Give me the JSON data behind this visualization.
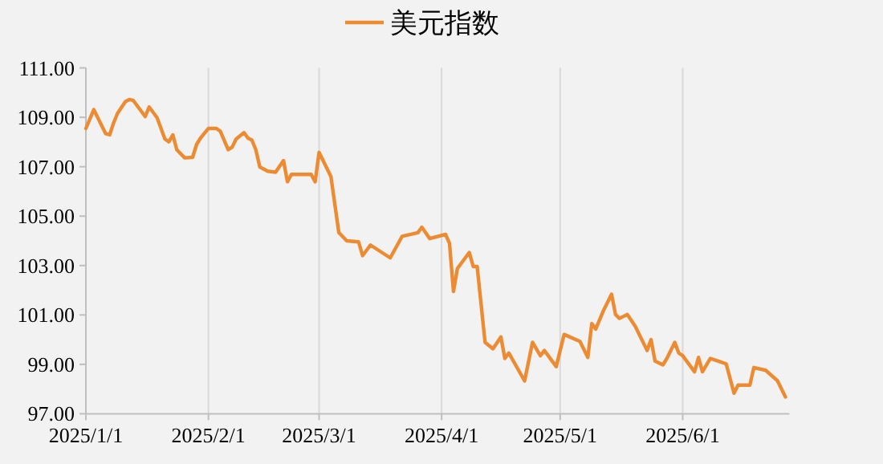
{
  "chart_data": {
    "type": "line",
    "x": [
      "2025-01-01",
      "2025-01-03",
      "2025-01-06",
      "2025-01-07",
      "2025-01-08",
      "2025-01-09",
      "2025-01-11",
      "2025-01-12",
      "2025-01-13",
      "2025-01-15",
      "2025-01-16",
      "2025-01-17",
      "2025-01-19",
      "2025-01-21",
      "2025-01-22",
      "2025-01-23",
      "2025-01-24",
      "2025-01-26",
      "2025-01-28",
      "2025-01-29",
      "2025-01-30",
      "2025-02-01",
      "2025-02-03",
      "2025-02-04",
      "2025-02-06",
      "2025-02-07",
      "2025-02-08",
      "2025-02-10",
      "2025-02-11",
      "2025-02-12",
      "2025-02-13",
      "2025-02-14",
      "2025-02-16",
      "2025-02-18",
      "2025-02-20",
      "2025-02-21",
      "2025-02-22",
      "2025-02-24",
      "2025-02-27",
      "2025-02-28",
      "2025-03-01",
      "2025-03-04",
      "2025-03-06",
      "2025-03-08",
      "2025-03-11",
      "2025-03-12",
      "2025-03-14",
      "2025-03-19",
      "2025-03-22",
      "2025-03-26",
      "2025-03-27",
      "2025-03-29",
      "2025-04-02",
      "2025-04-03",
      "2025-04-04",
      "2025-04-05",
      "2025-04-08",
      "2025-04-09",
      "2025-04-10",
      "2025-04-12",
      "2025-04-14",
      "2025-04-16",
      "2025-04-17",
      "2025-04-18",
      "2025-04-22",
      "2025-04-24",
      "2025-04-26",
      "2025-04-27",
      "2025-04-30",
      "2025-05-02",
      "2025-05-06",
      "2025-05-08",
      "2025-05-09",
      "2025-05-10",
      "2025-05-12",
      "2025-05-14",
      "2025-05-15",
      "2025-05-16",
      "2025-05-18",
      "2025-05-20",
      "2025-05-23",
      "2025-05-24",
      "2025-05-25",
      "2025-05-27",
      "2025-05-28",
      "2025-05-30",
      "2025-05-31",
      "2025-06-01",
      "2025-06-04",
      "2025-06-05",
      "2025-06-06",
      "2025-06-08",
      "2025-06-10",
      "2025-06-12",
      "2025-06-14",
      "2025-06-15",
      "2025-06-18",
      "2025-06-19",
      "2025-06-22",
      "2025-06-25",
      "2025-06-27"
    ],
    "series": [
      {
        "name": "美元指数",
        "color": "#ed8b32",
        "values": [
          108.55,
          109.31,
          108.34,
          108.29,
          108.77,
          109.16,
          109.64,
          109.72,
          109.68,
          109.25,
          109.03,
          109.42,
          108.99,
          108.12,
          108.01,
          108.29,
          107.69,
          107.36,
          107.38,
          107.9,
          108.16,
          108.55,
          108.55,
          108.44,
          107.69,
          107.79,
          108.12,
          108.38,
          108.16,
          108.08,
          107.69,
          106.99,
          106.82,
          106.78,
          107.25,
          106.39,
          106.69,
          106.69,
          106.69,
          106.39,
          107.58,
          106.6,
          104.33,
          104.0,
          103.96,
          103.4,
          103.83,
          103.31,
          104.18,
          104.33,
          104.55,
          104.09,
          104.26,
          103.9,
          101.95,
          102.88,
          103.53,
          102.96,
          102.96,
          99.89,
          99.63,
          100.11,
          99.24,
          99.46,
          98.33,
          99.89,
          99.35,
          99.56,
          98.91,
          100.21,
          99.93,
          99.28,
          100.65,
          100.43,
          101.19,
          101.84,
          101.02,
          100.86,
          101.02,
          100.54,
          99.56,
          100.0,
          99.13,
          98.98,
          99.24,
          99.89,
          99.46,
          99.35,
          98.7,
          99.28,
          98.7,
          99.24,
          99.13,
          99.02,
          97.83,
          98.16,
          98.16,
          98.87,
          98.76,
          98.33,
          97.68
        ]
      }
    ],
    "xlim": [
      "2025-01-01",
      "2025-06-28"
    ],
    "ylim": [
      97,
      111
    ],
    "xticks": [
      {
        "value": "2025-01-01",
        "label": "2025/1/1"
      },
      {
        "value": "2025-02-01",
        "label": "2025/2/1"
      },
      {
        "value": "2025-03-01",
        "label": "2025/3/1"
      },
      {
        "value": "2025-04-01",
        "label": "2025/4/1"
      },
      {
        "value": "2025-05-01",
        "label": "2025/5/1"
      },
      {
        "value": "2025-06-01",
        "label": "2025/6/1"
      }
    ],
    "yticks": [
      {
        "value": 97,
        "label": "97.00"
      },
      {
        "value": 99,
        "label": "99.00"
      },
      {
        "value": 101,
        "label": "101.00"
      },
      {
        "value": 103,
        "label": "103.00"
      },
      {
        "value": 105,
        "label": "105.00"
      },
      {
        "value": 107,
        "label": "107.00"
      },
      {
        "value": 109,
        "label": "109.00"
      },
      {
        "value": 111,
        "label": "111.00"
      }
    ],
    "grid": "x",
    "legend": "top",
    "marker": "none",
    "line_style": "solid"
  }
}
